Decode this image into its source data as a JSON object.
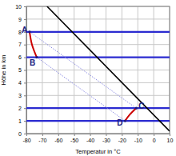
{
  "chart_data": {
    "type": "line",
    "x_label": "Temperatur in °C",
    "y_label": "Höhe in km",
    "xlim": [
      -80,
      10
    ],
    "ylim": [
      0,
      10
    ],
    "xticks": [
      -80,
      -70,
      -60,
      -50,
      -40,
      -30,
      -20,
      -10,
      0,
      10
    ],
    "yticks": [
      0,
      1,
      2,
      3,
      4,
      5,
      6,
      7,
      8,
      9,
      10
    ],
    "grid": true,
    "reference_lines": {
      "values": [
        1,
        2,
        6,
        8
      ],
      "color": "#2b2bd0"
    },
    "series": [
      {
        "color": "#000000",
        "line_style": "solid",
        "x": [
          -67,
          10
        ],
        "values": [
          10,
          0.2
        ]
      },
      {
        "color": "#8080e0",
        "line_style": "dotted",
        "x": [
          -78,
          -11
        ],
        "values": [
          8,
          2
        ]
      },
      {
        "color": "#8080e0",
        "line_style": "dotted",
        "x": [
          -73.5,
          -18
        ],
        "values": [
          6,
          1
        ]
      },
      {
        "color": "#cc0000",
        "line_style": "solid",
        "x": [
          -78,
          -76.5,
          -73.5
        ],
        "values": [
          8,
          7,
          6
        ]
      },
      {
        "color": "#cc0000",
        "line_style": "solid",
        "x": [
          -18,
          -15,
          -11
        ],
        "values": [
          1,
          1.5,
          2
        ]
      }
    ],
    "points": [
      {
        "label": "A",
        "x": -78,
        "y": 8
      },
      {
        "label": "B",
        "x": -73.5,
        "y": 6
      },
      {
        "label": "C",
        "x": -11,
        "y": 2
      },
      {
        "label": "D",
        "x": -18,
        "y": 1
      }
    ]
  }
}
